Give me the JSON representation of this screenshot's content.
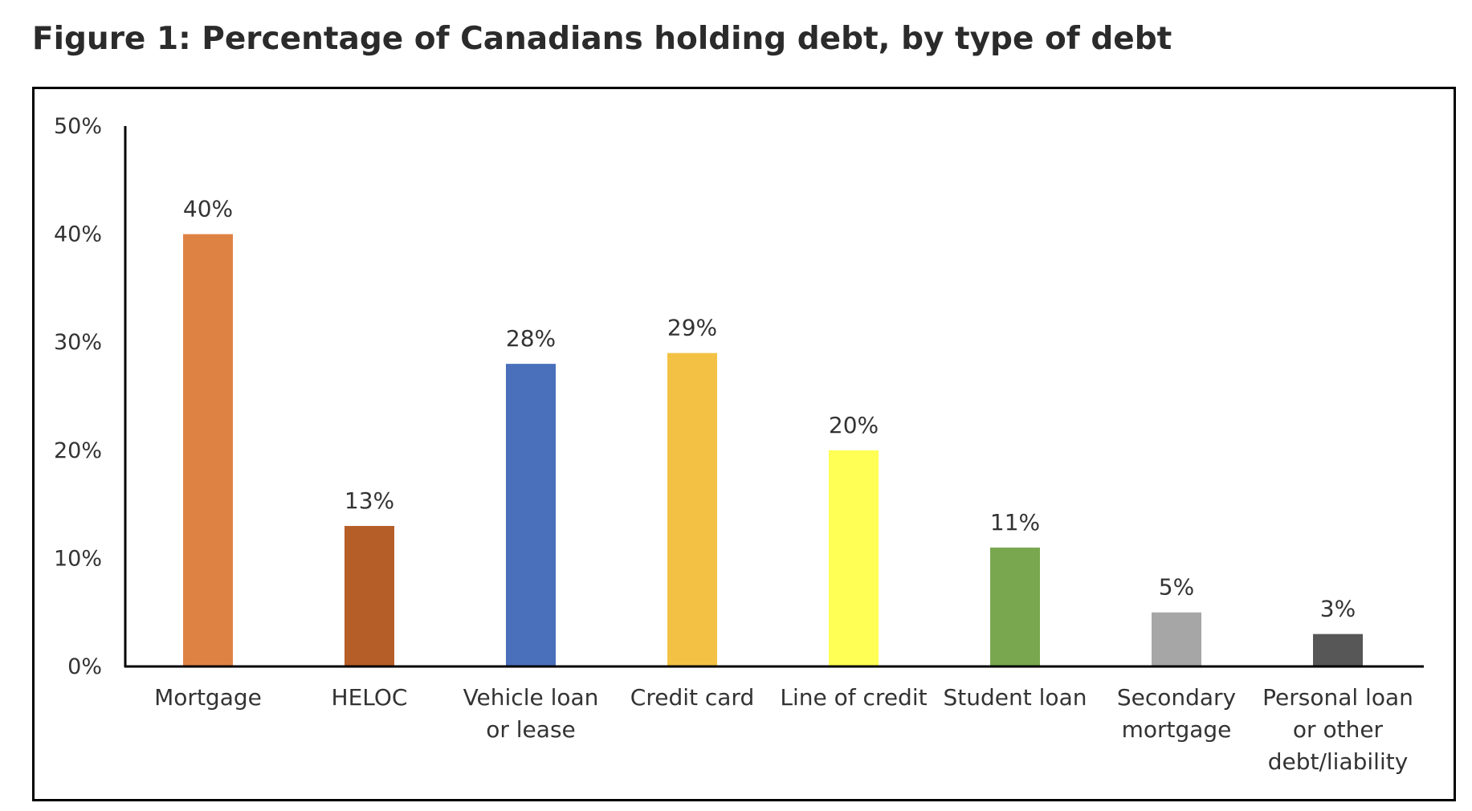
{
  "figure_title": "Figure 1: Percentage of Canadians holding debt, by type of debt",
  "chart_data": {
    "type": "bar",
    "title": "",
    "xlabel": "",
    "ylabel": "",
    "ylim": [
      0,
      50
    ],
    "yticks": [
      "0%",
      "10%",
      "20%",
      "30%",
      "40%",
      "50%"
    ],
    "yticks_values": [
      0,
      10,
      20,
      30,
      40,
      50
    ],
    "grid": false,
    "legend": "none",
    "categories": [
      "Mortgage",
      "HELOC",
      "Vehicle loan or lease",
      "Credit card",
      "Line of credit",
      "Student loan",
      "Secondary mortgage",
      "Personal loan or other debt/liability"
    ],
    "category_lines": [
      [
        "Mortgage"
      ],
      [
        "HELOC"
      ],
      [
        "Vehicle loan",
        "or lease"
      ],
      [
        "Credit card"
      ],
      [
        "Line of credit"
      ],
      [
        "Student loan"
      ],
      [
        "Secondary",
        "mortgage"
      ],
      [
        "Personal loan",
        "or other",
        "debt/liability"
      ]
    ],
    "values": [
      40,
      13,
      28,
      29,
      20,
      11,
      5,
      3
    ],
    "data_labels": [
      "40%",
      "13%",
      "28%",
      "29%",
      "20%",
      "11%",
      "5%",
      "3%"
    ],
    "colors": [
      "#DE8244",
      "#B55E28",
      "#4A6FBB",
      "#F3C244",
      "#FFFF55",
      "#79A74F",
      "#A6A6A6",
      "#575757"
    ]
  }
}
